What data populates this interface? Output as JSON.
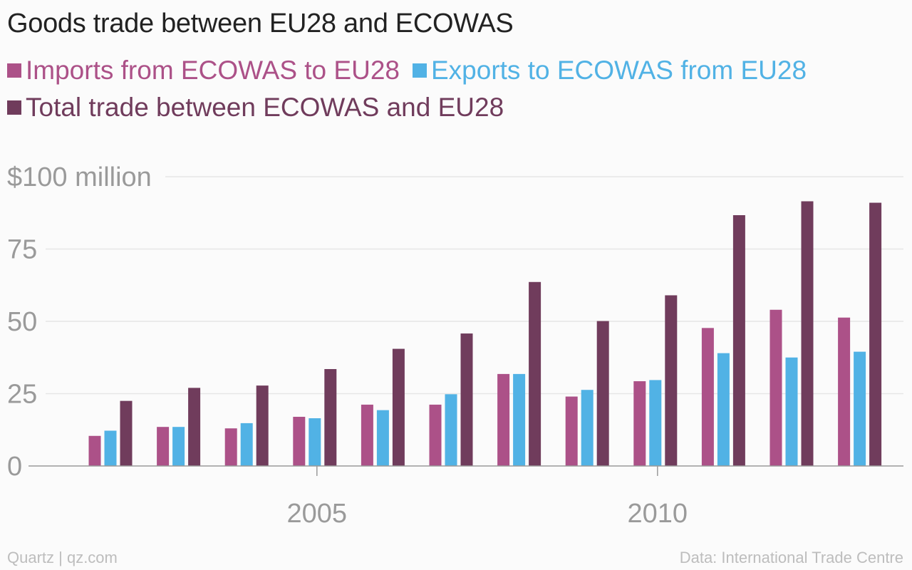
{
  "chart_data": {
    "type": "bar",
    "title": "Goods trade between EU28 and ECOWAS",
    "x": [
      2002,
      2003,
      2004,
      2005,
      2006,
      2007,
      2008,
      2009,
      2010,
      2011,
      2012,
      2013
    ],
    "series": [
      {
        "name": "Imports from ECOWAS to EU28",
        "color": "#ac5188",
        "values": [
          10.4,
          13.5,
          13.0,
          17.0,
          21.2,
          21.2,
          31.8,
          24.0,
          29.3,
          47.7,
          54.0,
          51.3
        ]
      },
      {
        "name": "Exports to ECOWAS from EU28",
        "color": "#51b2e5",
        "values": [
          12.2,
          13.5,
          14.8,
          16.5,
          19.3,
          24.8,
          31.8,
          26.3,
          29.7,
          39.0,
          37.5,
          39.5
        ]
      },
      {
        "name": "Total trade between ECOWAS and EU28",
        "color": "#703c5c",
        "values": [
          22.5,
          27.0,
          27.8,
          33.5,
          40.5,
          45.8,
          63.6,
          50.1,
          59.0,
          86.7,
          91.5,
          91.0
        ]
      }
    ],
    "ylim": [
      0,
      100
    ],
    "yticks": [
      {
        "value": 0,
        "label": "0"
      },
      {
        "value": 25,
        "label": "25"
      },
      {
        "value": 50,
        "label": "50"
      },
      {
        "value": 75,
        "label": "75"
      },
      {
        "value": 100,
        "label": "$100 million"
      }
    ],
    "xticks": [
      {
        "value": 2005,
        "label": "2005"
      },
      {
        "value": 2010,
        "label": "2010"
      }
    ],
    "grid": true,
    "legend_position": "top"
  },
  "footer": {
    "source_left": "Quartz | qz.com",
    "source_right": "Data: International Trade Centre"
  }
}
